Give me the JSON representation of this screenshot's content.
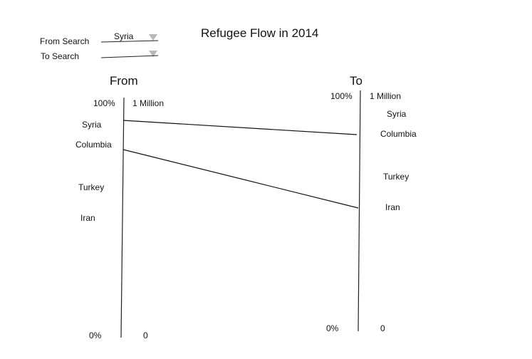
{
  "title": "Refugee Flow in 2014",
  "filters": {
    "from_label": "From Search",
    "from_value": "Syria",
    "to_label": "To Search",
    "to_value": ""
  },
  "from_axis": {
    "heading": "From",
    "top_pct": "100%",
    "bottom_pct": "0%",
    "top_value": "1 Million",
    "bottom_value": "0",
    "countries": [
      "Syria",
      "Columbia",
      "Turkey",
      "Iran"
    ]
  },
  "to_axis": {
    "heading": "To",
    "top_pct": "100%",
    "bottom_pct": "0%",
    "top_value": "1 Million",
    "bottom_value": "0",
    "countries": [
      "Syria",
      "Columbia",
      "Turkey",
      "Iran"
    ]
  },
  "flows": [
    {
      "from": "Syria",
      "to": "Columbia"
    },
    {
      "from": "Columbia",
      "to": "Iran"
    }
  ]
}
